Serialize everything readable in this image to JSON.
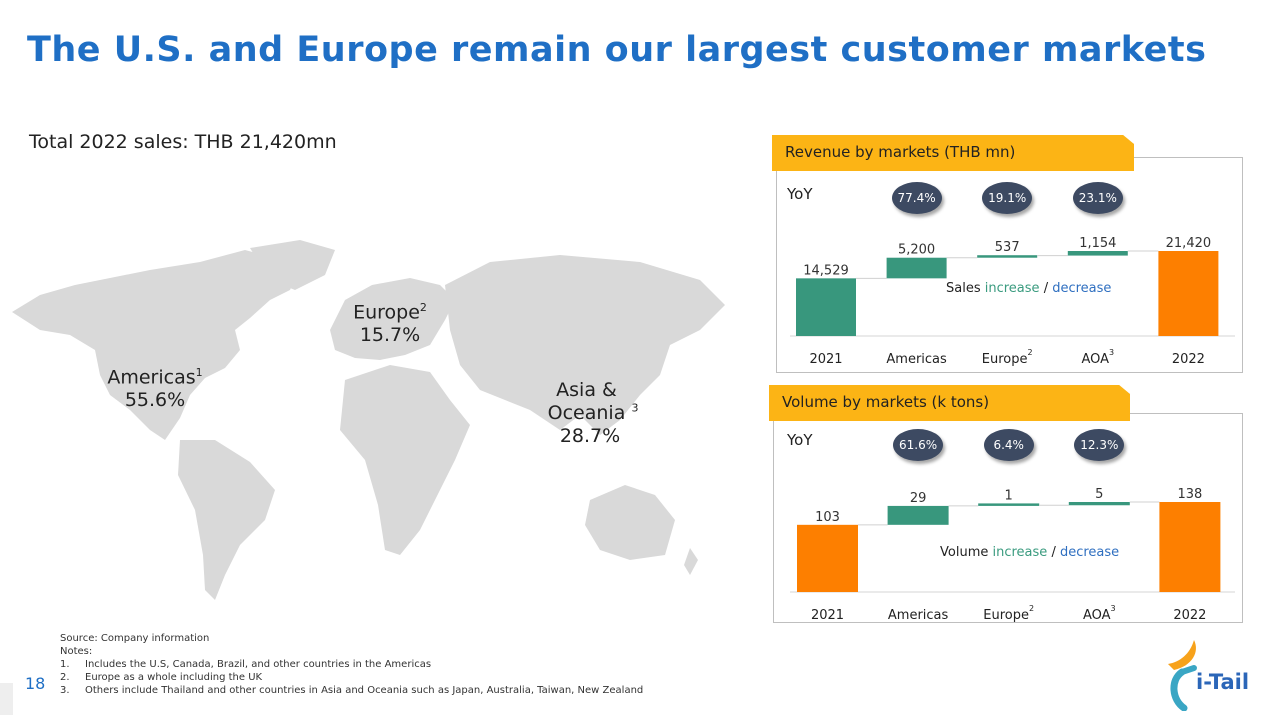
{
  "title": "The U.S. and Europe remain our largest customer markets",
  "total_sales": "Total 2022 sales: THB 21,420mn",
  "regions": [
    {
      "name": "Americas",
      "note": "1",
      "share": "55.6%"
    },
    {
      "name": "Europe",
      "note": "2",
      "share": "15.7%"
    },
    {
      "name": "Asia & Oceania",
      "note": "3",
      "share": "28.7%"
    }
  ],
  "colors": {
    "increase": "#38977d",
    "total_revenue_2021": "#38977d",
    "total_orange": "#fd7f00",
    "tab": "#fcb415",
    "bubble": "#3d4a62",
    "title": "#1f6fc5"
  },
  "chart_data": [
    {
      "type": "bar",
      "subtype": "waterfall",
      "title": "Revenue by markets (THB mn)",
      "yoy_label": "YoY",
      "categories": [
        "2021",
        "Americas",
        "Europe",
        "AOA",
        "2022"
      ],
      "category_notes": [
        "",
        "",
        "2",
        "3",
        ""
      ],
      "values": [
        14529,
        5200,
        537,
        1154,
        21420
      ],
      "value_labels": [
        "14,529",
        "5,200",
        "537",
        "1,154",
        "21,420"
      ],
      "kinds": [
        "total",
        "delta",
        "delta",
        "delta",
        "total"
      ],
      "bar_colors": [
        "#38977d",
        "#38977d",
        "#38977d",
        "#38977d",
        "#fd7f00"
      ],
      "yoy": [
        "",
        "77.4%",
        "19.1%",
        "23.1%",
        ""
      ],
      "legend": {
        "prefix": "Sales",
        "increase": "increase",
        "sep": "/",
        "decrease": "decrease"
      }
    },
    {
      "type": "bar",
      "subtype": "waterfall",
      "title": "Volume by markets (k tons)",
      "yoy_label": "YoY",
      "categories": [
        "2021",
        "Americas",
        "Europe",
        "AOA",
        "2022"
      ],
      "category_notes": [
        "",
        "",
        "2",
        "3",
        ""
      ],
      "values": [
        103,
        29,
        1,
        5,
        138
      ],
      "value_labels": [
        "103",
        "29",
        "1",
        "5",
        "138"
      ],
      "kinds": [
        "total",
        "delta",
        "delta",
        "delta",
        "total"
      ],
      "bar_colors": [
        "#fd7f00",
        "#38977d",
        "#38977d",
        "#38977d",
        "#fd7f00"
      ],
      "yoy": [
        "",
        "61.6%",
        "6.4%",
        "12.3%",
        ""
      ],
      "legend": {
        "prefix": "Volume",
        "increase": "increase",
        "sep": "/",
        "decrease": "decrease"
      }
    }
  ],
  "footer": {
    "source": "Source: Company information",
    "notes_label": "Notes:",
    "notes": [
      {
        "num": "1.",
        "text": "Includes the U.S, Canada, Brazil, and other countries in the Americas"
      },
      {
        "num": "2.",
        "text": "Europe as a whole including the UK"
      },
      {
        "num": "3.",
        "text": "Others include Thailand and other countries in Asia and Oceania such as Japan, Australia, Taiwan, New Zealand"
      }
    ],
    "page_number": "18"
  },
  "logo": {
    "text": "i-Tail"
  }
}
